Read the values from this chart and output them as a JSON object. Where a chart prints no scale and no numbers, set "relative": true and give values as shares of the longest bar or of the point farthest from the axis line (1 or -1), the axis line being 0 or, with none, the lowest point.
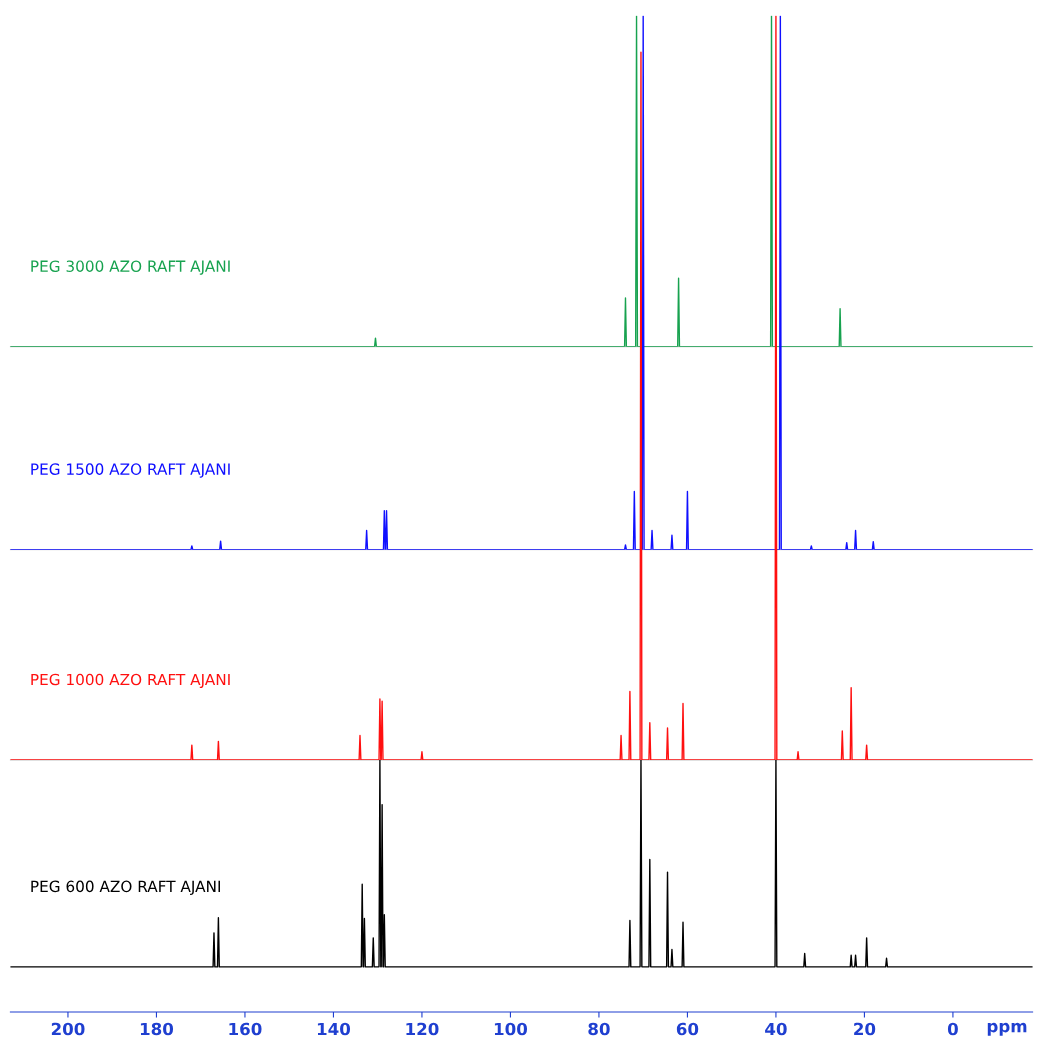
{
  "chart_data": [
    {
      "type": "line",
      "relative": true,
      "xlim": [
        213,
        -18
      ],
      "xticks": [
        200,
        180,
        160,
        140,
        120,
        100,
        80,
        60,
        40,
        20,
        0
      ],
      "tick_labels": false,
      "series": [
        {
          "name": "PEG 3000 AZO RAFT AJANI",
          "color": "#17a24f",
          "x": [
            213,
            130.7,
            130.5,
            130.3,
            74.2,
            74,
            73.8,
            71.7,
            71.5,
            71.3,
            62.2,
            62,
            61.8,
            41.2,
            41,
            40.8,
            25.7,
            25.5,
            25.3,
            -18
          ],
          "values": [
            0,
            0,
            0.026,
            0,
            0,
            0.147,
            0,
            0,
            1,
            0,
            0,
            0.207,
            0,
            0,
            1,
            0,
            0,
            0.115,
            0,
            0
          ]
        }
      ]
    },
    {
      "type": "line",
      "relative": true,
      "xlim": [
        213,
        -18
      ],
      "xticks": [
        200,
        180,
        160,
        140,
        120,
        100,
        80,
        60,
        40,
        20,
        0
      ],
      "tick_labels": false,
      "series": [
        {
          "name": "PEG 1500 AZO RAFT AJANI",
          "color": "#1010ff",
          "x": [
            213,
            172.2,
            172,
            171.8,
            165.7,
            165.5,
            165.3,
            132.7,
            132.5,
            132.3,
            128.7,
            128.5,
            128.3,
            128.2,
            128,
            127.8,
            74.2,
            74,
            73.8,
            72.2,
            72,
            71.8,
            70.2,
            70,
            69.8,
            68.2,
            68,
            67.8,
            63.7,
            63.5,
            63.3,
            60.2,
            60,
            59.8,
            39.2,
            39,
            38.8,
            32.2,
            32,
            31.8,
            24.2,
            24,
            23.8,
            22.2,
            22,
            21.8,
            18.2,
            18,
            17.8,
            -18
          ],
          "values": [
            0,
            0,
            0.007,
            0,
            0,
            0.016,
            0,
            0,
            0.036,
            0,
            0,
            0.073,
            0,
            0,
            0.073,
            0,
            0,
            0.009,
            0,
            0,
            0.109,
            0,
            0,
            1,
            0,
            0,
            0.036,
            0,
            0,
            0.027,
            0,
            0,
            0.109,
            0,
            0,
            1,
            0,
            0,
            0.007,
            0,
            0,
            0.013,
            0,
            0,
            0.036,
            0,
            0,
            0.015,
            0,
            0
          ]
        }
      ]
    },
    {
      "type": "line",
      "relative": true,
      "xlim": [
        213,
        -18
      ],
      "xticks": [
        200,
        180,
        160,
        140,
        120,
        100,
        80,
        60,
        40,
        20,
        0
      ],
      "tick_labels": false,
      "series": [
        {
          "name": "PEG 1000 AZO RAFT AJANI",
          "color": "#ff1010",
          "x": [
            213,
            172.2,
            172,
            171.8,
            166.2,
            166,
            165.8,
            134.2,
            134,
            133.8,
            129.7,
            129.5,
            129.3,
            129.2,
            129,
            128.8,
            120.2,
            120,
            119.8,
            75.2,
            75,
            74.8,
            73.2,
            73,
            72.8,
            70.7,
            70.5,
            70.3,
            68.7,
            68.5,
            68.3,
            64.7,
            64.5,
            64.3,
            61.2,
            61,
            60.8,
            40.2,
            40,
            39.8,
            35.2,
            35,
            34.8,
            25.2,
            25,
            24.8,
            23.2,
            23,
            22.8,
            19.7,
            19.5,
            19.3,
            -18
          ],
          "values": [
            0,
            0,
            0.02,
            0,
            0,
            0.025,
            0,
            0,
            0.033,
            0,
            0,
            0.082,
            0,
            0,
            0.079,
            0,
            0,
            0.011,
            0,
            0,
            0.033,
            0,
            0,
            0.092,
            0,
            0,
            0.951,
            0,
            0,
            0.05,
            0,
            0,
            0.043,
            0,
            0,
            0.076,
            0,
            0,
            1,
            0,
            0,
            0.011,
            0,
            0,
            0.039,
            0,
            0,
            0.097,
            0,
            0,
            0.02,
            0,
            0
          ]
        }
      ]
    },
    {
      "type": "line",
      "relative": true,
      "xlabel": "ppm",
      "xlim": [
        213,
        -18
      ],
      "xticks": [
        200,
        180,
        160,
        140,
        120,
        100,
        80,
        60,
        40,
        20,
        0
      ],
      "tick_labels": "x",
      "series": [
        {
          "name": "PEG 600 AZO RAFT AJANI",
          "color": "#000000",
          "x": [
            213,
            167.2,
            167,
            166.8,
            166.2,
            166,
            165.8,
            133.7,
            133.5,
            133.3,
            133.2,
            133,
            132.8,
            131.2,
            131,
            130.8,
            129.7,
            129.5,
            129.3,
            129.2,
            129,
            128.8,
            128.7,
            128.5,
            128.3,
            73.2,
            73,
            72.8,
            70.7,
            70.5,
            70.3,
            68.7,
            68.5,
            68.3,
            64.7,
            64.5,
            64.3,
            63.7,
            63.5,
            63.3,
            61.2,
            61,
            60.8,
            40.2,
            40,
            39.8,
            33.7,
            33.5,
            33.3,
            23.2,
            23,
            22.8,
            22.2,
            22,
            21.8,
            19.7,
            19.5,
            19.3,
            15.2,
            15,
            14.8,
            -18
          ],
          "values": [
            0.179,
            0.179,
            0.314,
            0.179,
            0.179,
            0.374,
            0.179,
            0.179,
            0.507,
            0.179,
            0.179,
            0.371,
            0.179,
            0.179,
            0.294,
            0.179,
            0.179,
            1,
            0.179,
            0.179,
            0.823,
            0.179,
            0.179,
            0.386,
            0.179,
            0.179,
            0.363,
            0.179,
            0.179,
            1,
            0.179,
            0.179,
            0.605,
            0.179,
            0.179,
            0.555,
            0.179,
            0.179,
            0.248,
            0.179,
            0.179,
            0.356,
            0.179,
            0.179,
            1,
            0.179,
            0.179,
            0.232,
            0.179,
            0.179,
            0.225,
            0.179,
            0.179,
            0.225,
            0.179,
            0.179,
            0.294,
            0.179,
            0.179,
            0.213,
            0.179,
            0.179
          ]
        }
      ]
    }
  ]
}
